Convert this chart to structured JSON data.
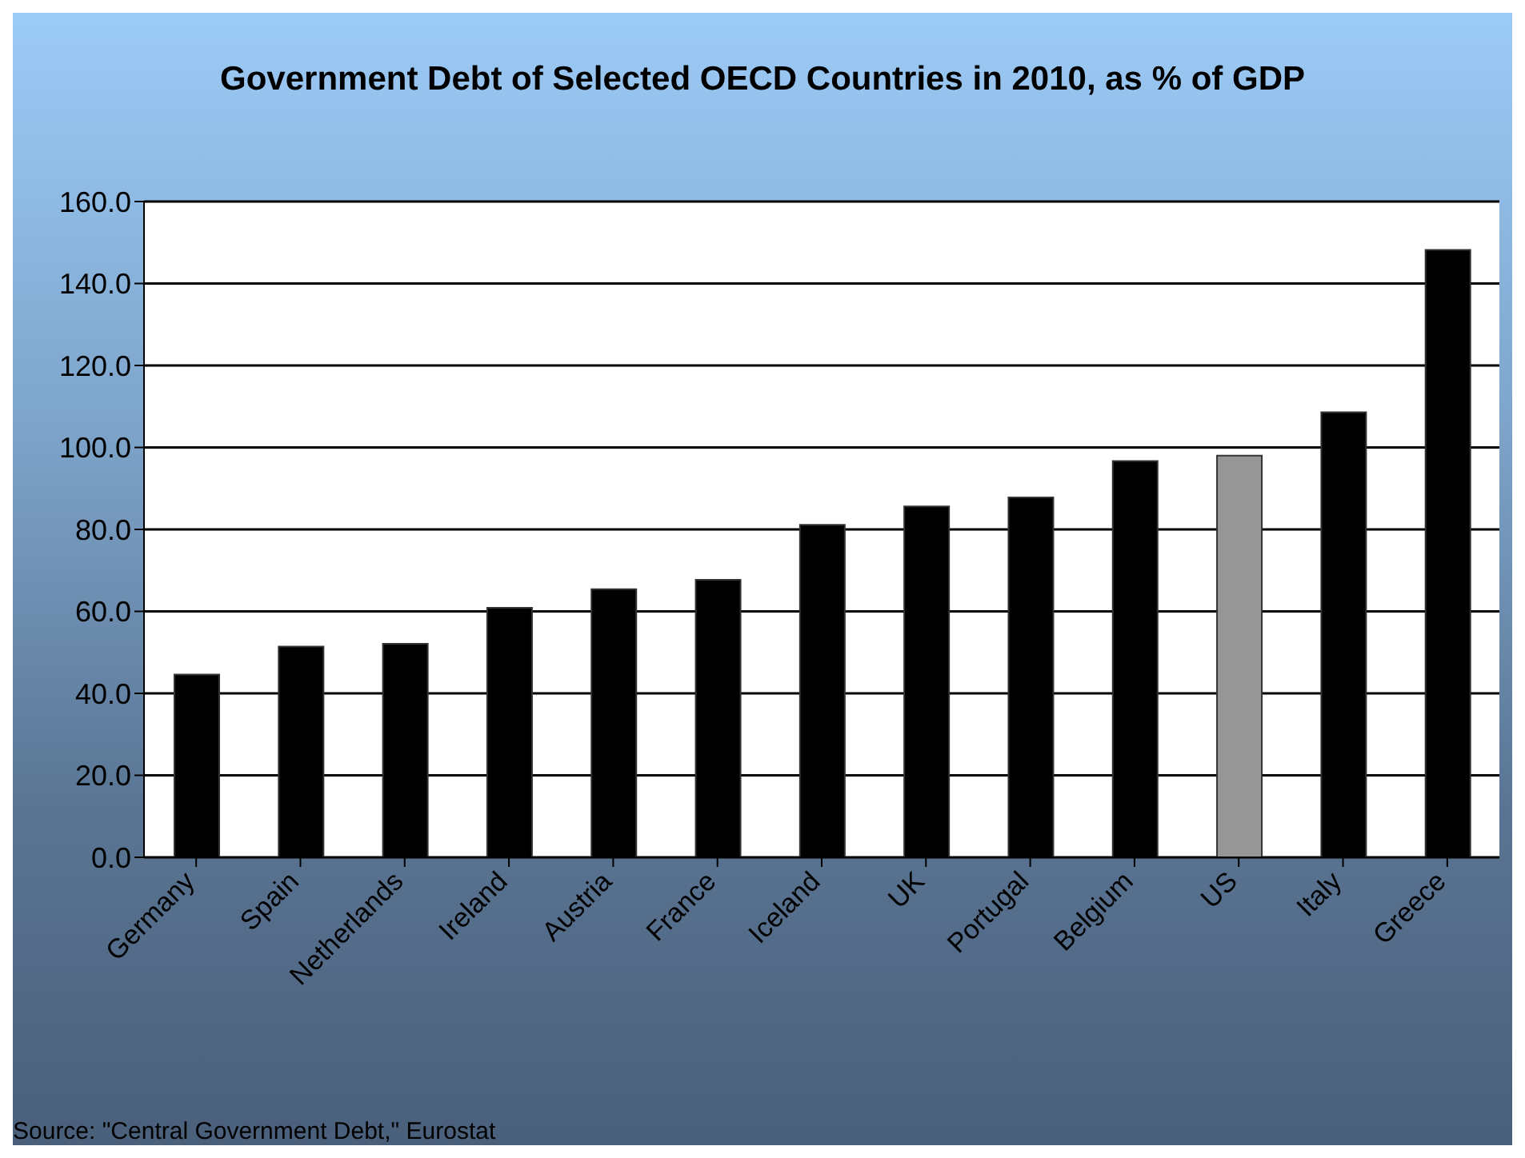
{
  "chart_data": {
    "type": "bar",
    "title": "Government Debt of Selected OECD Countries in 2010, as % of GDP",
    "categories": [
      "Germany",
      "Spain",
      "Netherlands",
      "Ireland",
      "Austria",
      "France",
      "Iceland",
      "UK",
      "Portugal",
      "Belgium",
      "US",
      "Italy",
      "Greece"
    ],
    "values": [
      44.6,
      51.4,
      52.1,
      60.9,
      65.4,
      67.7,
      81.1,
      85.6,
      87.8,
      96.7,
      98.0,
      108.6,
      148.2
    ],
    "colors": [
      "#000000",
      "#000000",
      "#000000",
      "#000000",
      "#000000",
      "#000000",
      "#000000",
      "#000000",
      "#000000",
      "#000000",
      "#969696",
      "#000000",
      "#000000"
    ],
    "ylim": [
      0,
      160
    ],
    "yticks": [
      {
        "value": 0,
        "label": "0.0"
      },
      {
        "value": 20,
        "label": "20.0"
      },
      {
        "value": 40,
        "label": "40.0"
      },
      {
        "value": 60,
        "label": "60.0"
      },
      {
        "value": 80,
        "label": "80.0"
      },
      {
        "value": 100,
        "label": "100.0"
      },
      {
        "value": 120,
        "label": "120.0"
      },
      {
        "value": 140,
        "label": "140.0"
      },
      {
        "value": 160,
        "label": "160.0"
      }
    ],
    "grid": "y",
    "legend": false,
    "annotations": [
      "Source: \"Central Government Debt,\" Eurostat"
    ]
  }
}
